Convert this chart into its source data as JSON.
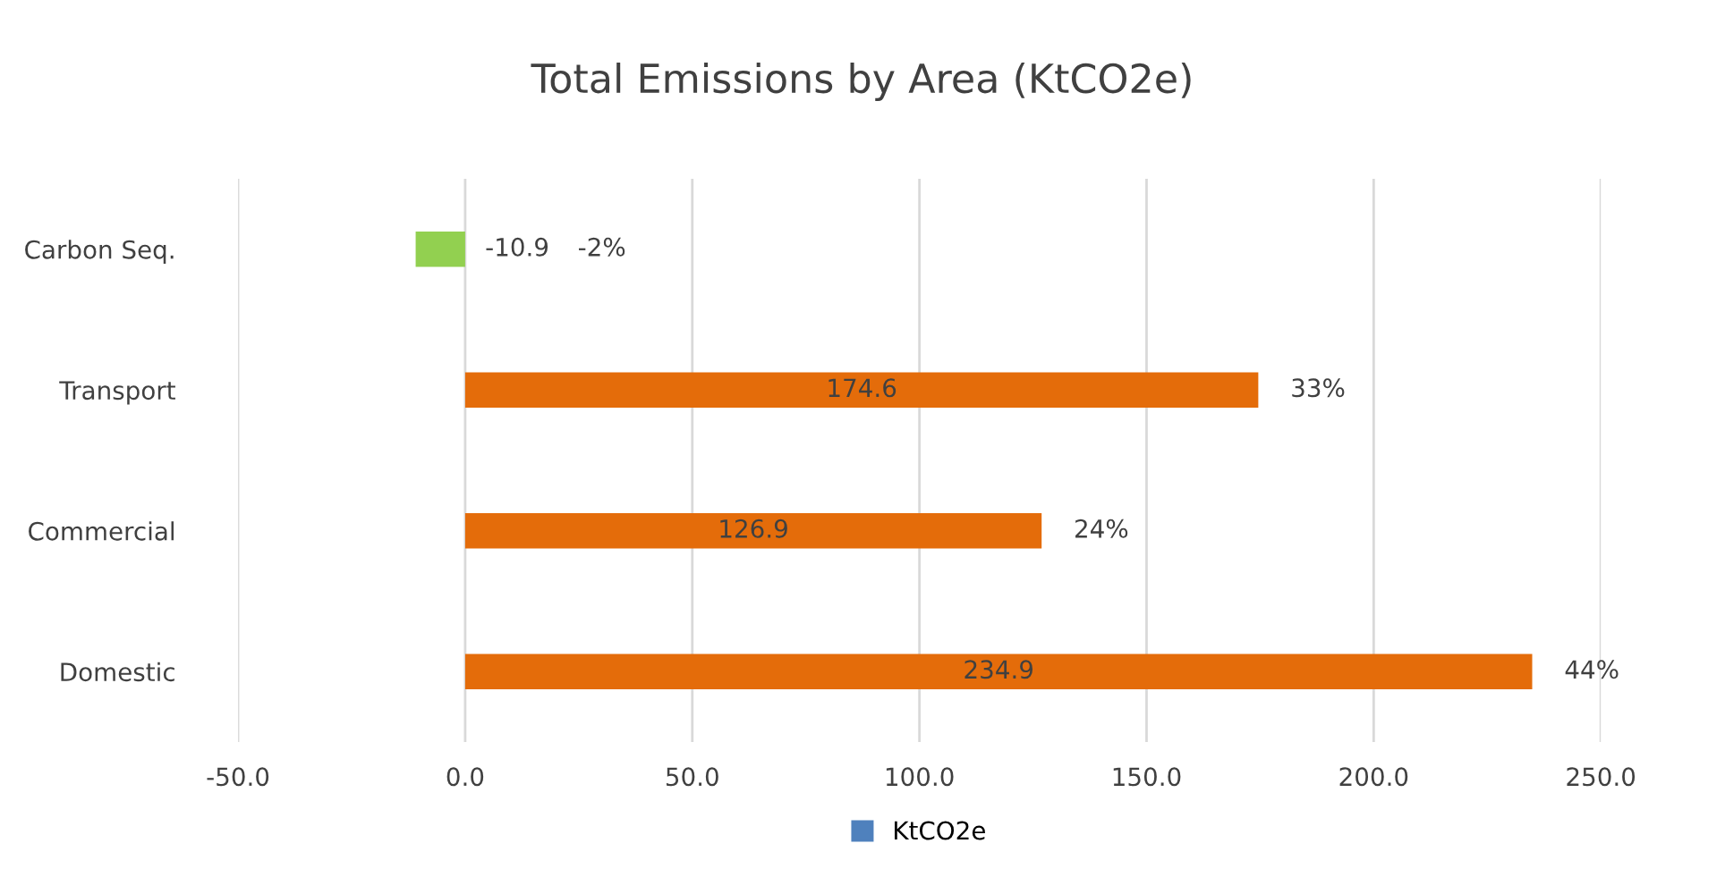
{
  "chart_data": {
    "type": "bar",
    "orientation": "horizontal",
    "title": "Total Emissions by Area (KtCO2e)",
    "categories": [
      "Carbon Seq.",
      "Transport",
      "Commercial",
      "Domestic"
    ],
    "series": [
      {
        "name": "KtCO2e",
        "color": "#4f81bd",
        "colors": [
          "#92d050",
          "#e46c0a",
          "#e46c0a",
          "#e46c0a"
        ],
        "values": [
          -10.9,
          174.6,
          126.9,
          234.9
        ]
      }
    ],
    "data_labels": true,
    "annotations": [
      "-2%",
      "33%",
      "24%",
      "44%"
    ],
    "xlim": [
      -50,
      250
    ],
    "xticks": [
      {
        "value": -50,
        "label": "-50.0"
      },
      {
        "value": 0,
        "label": "0.0"
      },
      {
        "value": 50,
        "label": "50.0"
      },
      {
        "value": 100,
        "label": "100.0"
      },
      {
        "value": 150,
        "label": "150.0"
      },
      {
        "value": 200,
        "label": "200.0"
      },
      {
        "value": 250,
        "label": "250.0"
      }
    ],
    "grid": "x",
    "legend": "bottom"
  }
}
